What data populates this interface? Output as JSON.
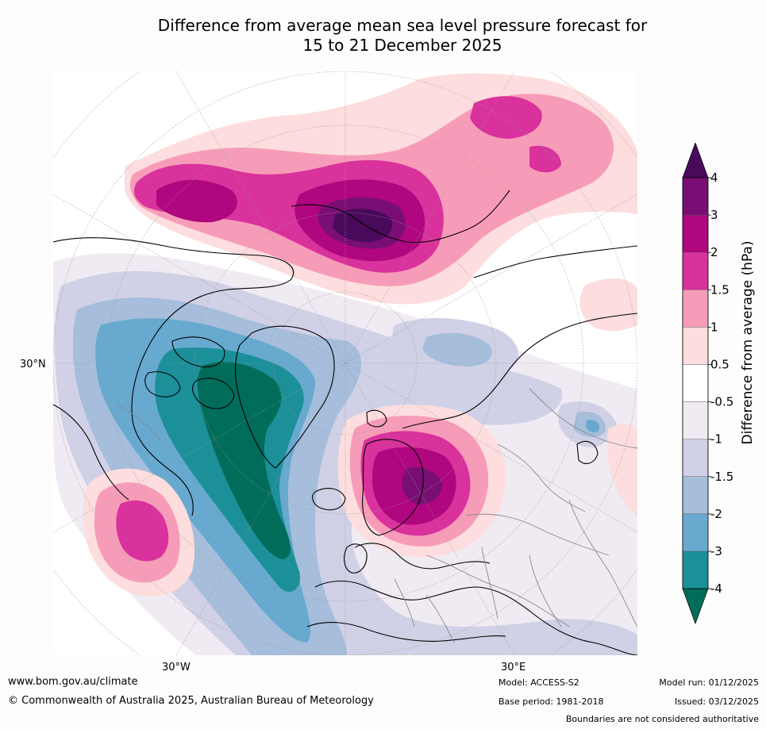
{
  "title": {
    "line1": "Difference from average mean sea level pressure forecast for",
    "line2": "15 to 21 December 2025"
  },
  "map": {
    "projection": "north-polar-stereographic",
    "graticule_labels": {
      "lat_30n": "30°N",
      "lon_30w": "30°W",
      "lon_30e": "30°E"
    }
  },
  "legend": {
    "label": "Difference from average (hPa)",
    "ticks": [
      "4",
      "3",
      "2",
      "1.5",
      "1",
      "0.5",
      "-0.5",
      "-1",
      "-1.5",
      "-2",
      "-3",
      "-4"
    ],
    "colors": {
      "above_4": "#4a0a5c",
      "3_4": "#790f74",
      "2_3": "#b0067f",
      "1.5_2": "#d9329c",
      "1_1.5": "#f79cb8",
      "0.5_1": "#fddddd",
      "-0.5_0.5": "#ffffff",
      "-1_-0.5": "#f0ebf3",
      "-1.5_-1": "#d0d1e6",
      "-2_-1.5": "#a6bddb",
      "-3_-2": "#67a9cf",
      "-4_-3": "#1c9099",
      "below_-4": "#016c59"
    }
  },
  "footer": {
    "url": "www.bom.gov.au/climate",
    "copyright": "© Commonwealth of Australia 2025, Australian Bureau of Meteorology",
    "model": "Model: ACCESS-S2",
    "base_period": "Base period: 1981-2018",
    "model_run": "Model run: 01/12/2025",
    "issued": "Issued: 03/12/2025",
    "disclaimer": "Boundaries are not considered authoritative"
  }
}
